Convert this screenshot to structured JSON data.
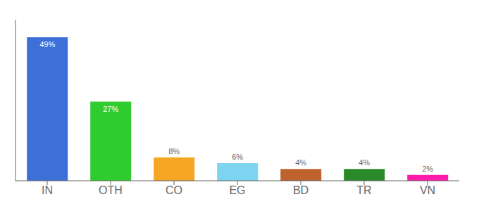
{
  "chart_data": {
    "type": "bar",
    "categories": [
      "IN",
      "OTH",
      "CO",
      "EG",
      "BD",
      "TR",
      "VN"
    ],
    "values": [
      49,
      27,
      8,
      6,
      4,
      4,
      2
    ],
    "value_labels": [
      "49%",
      "27%",
      "8%",
      "6%",
      "4%",
      "4%",
      "2%"
    ],
    "colors": [
      "#3d6fd9",
      "#2ecc2e",
      "#f5a623",
      "#7dd4f0",
      "#c0622e",
      "#2a8a2a",
      "#ff1aaa"
    ],
    "ylim": [
      0,
      55
    ],
    "tick_labels": "x",
    "data_labels": true,
    "grid": false
  }
}
